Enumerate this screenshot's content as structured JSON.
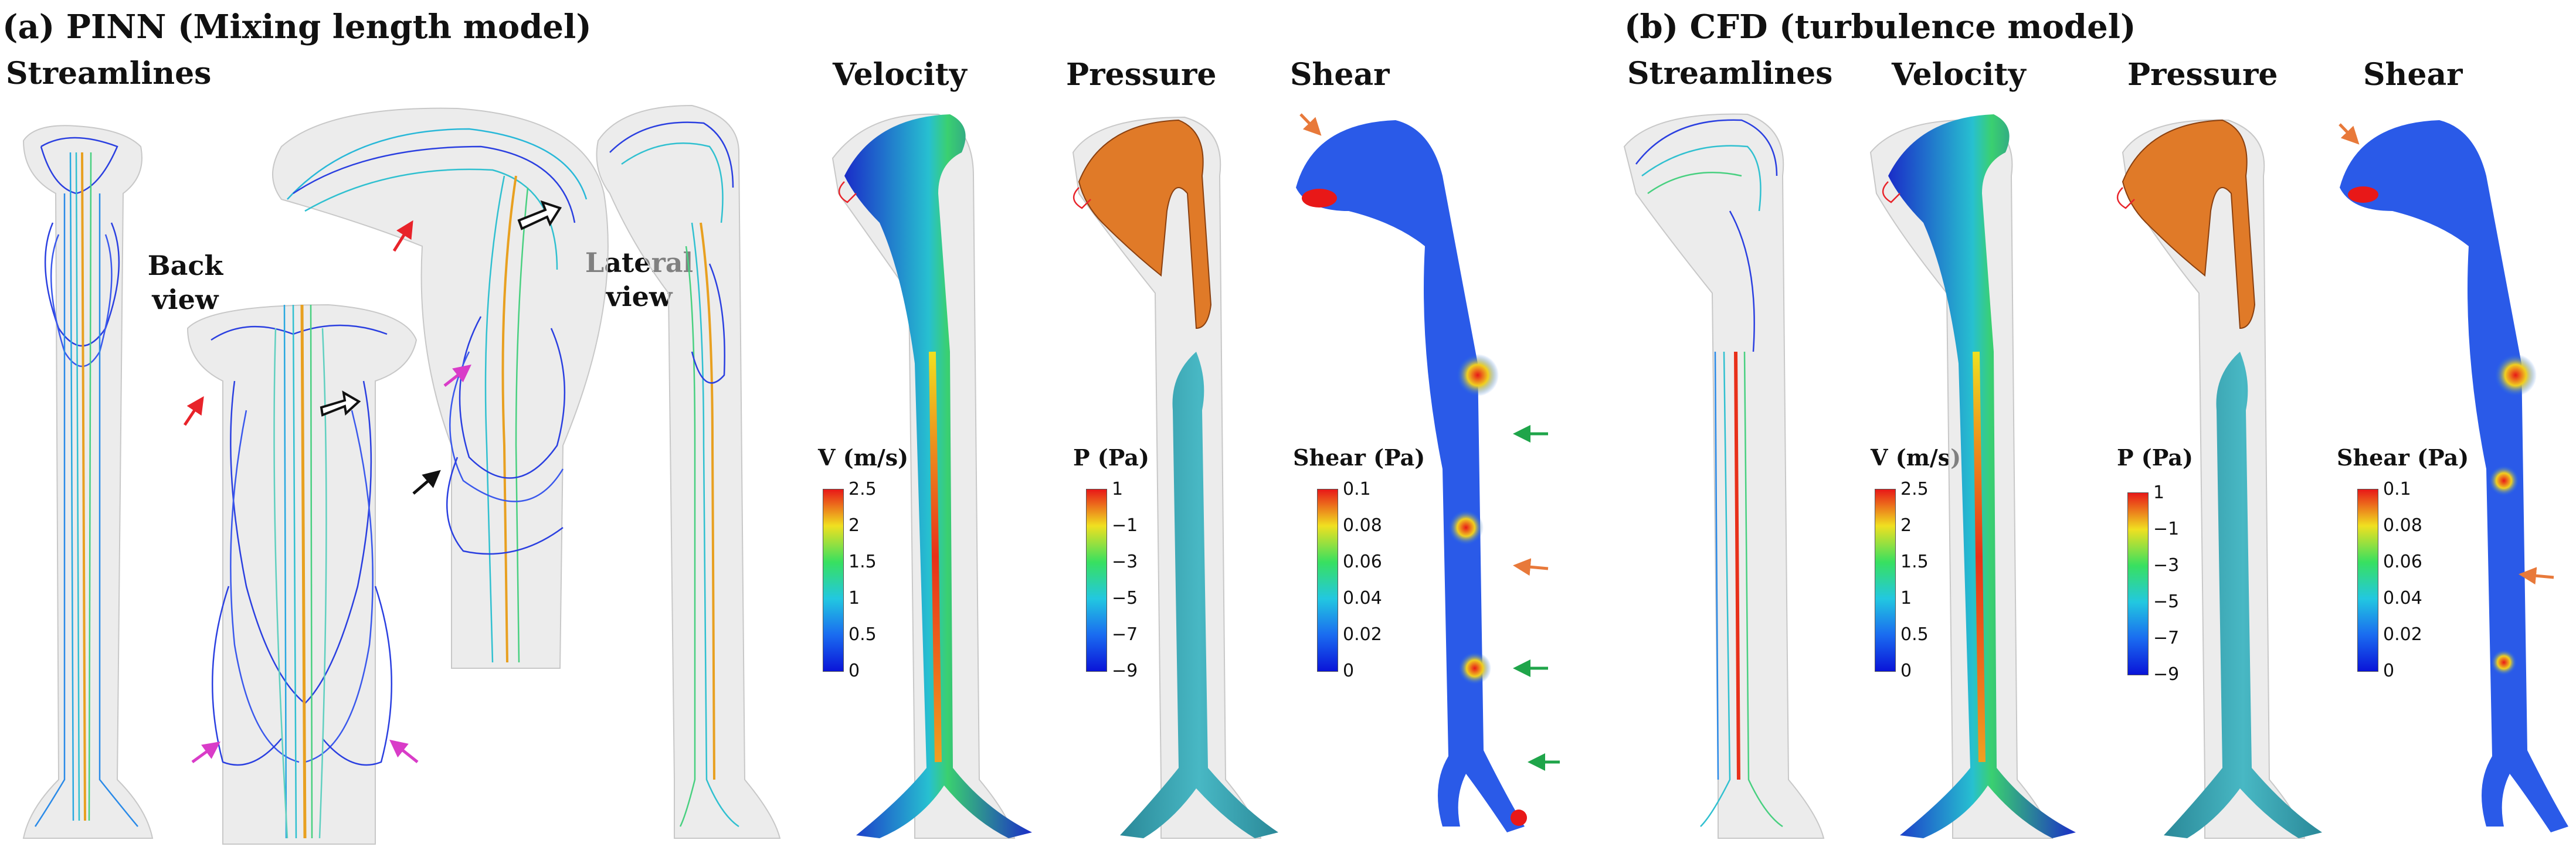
{
  "panel_a": {
    "title": "(a) PINN (Mixing length model)",
    "col_streamlines": "Streamlines",
    "col_velocity": "Velocity",
    "col_pressure": "Pressure",
    "col_shear": "Shear",
    "back_view": "Back view",
    "lateral_view": "Lateral view",
    "cb_velocity": {
      "title": "V (m/s)",
      "ticks": [
        "2.5",
        "2",
        "1.5",
        "1",
        "0.5",
        "0"
      ]
    },
    "cb_pressure": {
      "title": "P (Pa)",
      "ticks": [
        "1",
        "−1",
        "−3",
        "−5",
        "−7",
        "−9"
      ]
    },
    "cb_shear": {
      "title": "Shear (Pa)",
      "ticks": [
        "0.1",
        "0.08",
        "0.06",
        "0.04",
        "0.02",
        "0"
      ]
    }
  },
  "panel_b": {
    "title": "(b) CFD (turbulence model)",
    "col_streamlines": "Streamlines",
    "col_velocity": "Velocity",
    "col_pressure": "Pressure",
    "col_shear": "Shear",
    "cb_velocity": {
      "title": "V (m/s)",
      "ticks": [
        "2.5",
        "2",
        "1.5",
        "1",
        "0.5",
        "0"
      ]
    },
    "cb_pressure": {
      "title": "P (Pa)",
      "ticks": [
        "1",
        "−1",
        "−3",
        "−5",
        "−7",
        "−9"
      ]
    },
    "cb_shear": {
      "title": "Shear (Pa)",
      "ticks": [
        "0.1",
        "0.08",
        "0.06",
        "0.04",
        "0.02",
        "0"
      ]
    }
  },
  "colors": {
    "vessel_blue": "#2a3fe0",
    "pressure_orange": "#e07a28",
    "pressure_teal": "#3aa0b0",
    "arrow_red": "#e8232a",
    "arrow_magenta": "#d93cc8",
    "arrow_green": "#1fa54a",
    "arrow_orange": "#e8793a",
    "arrow_black": "#111111"
  }
}
